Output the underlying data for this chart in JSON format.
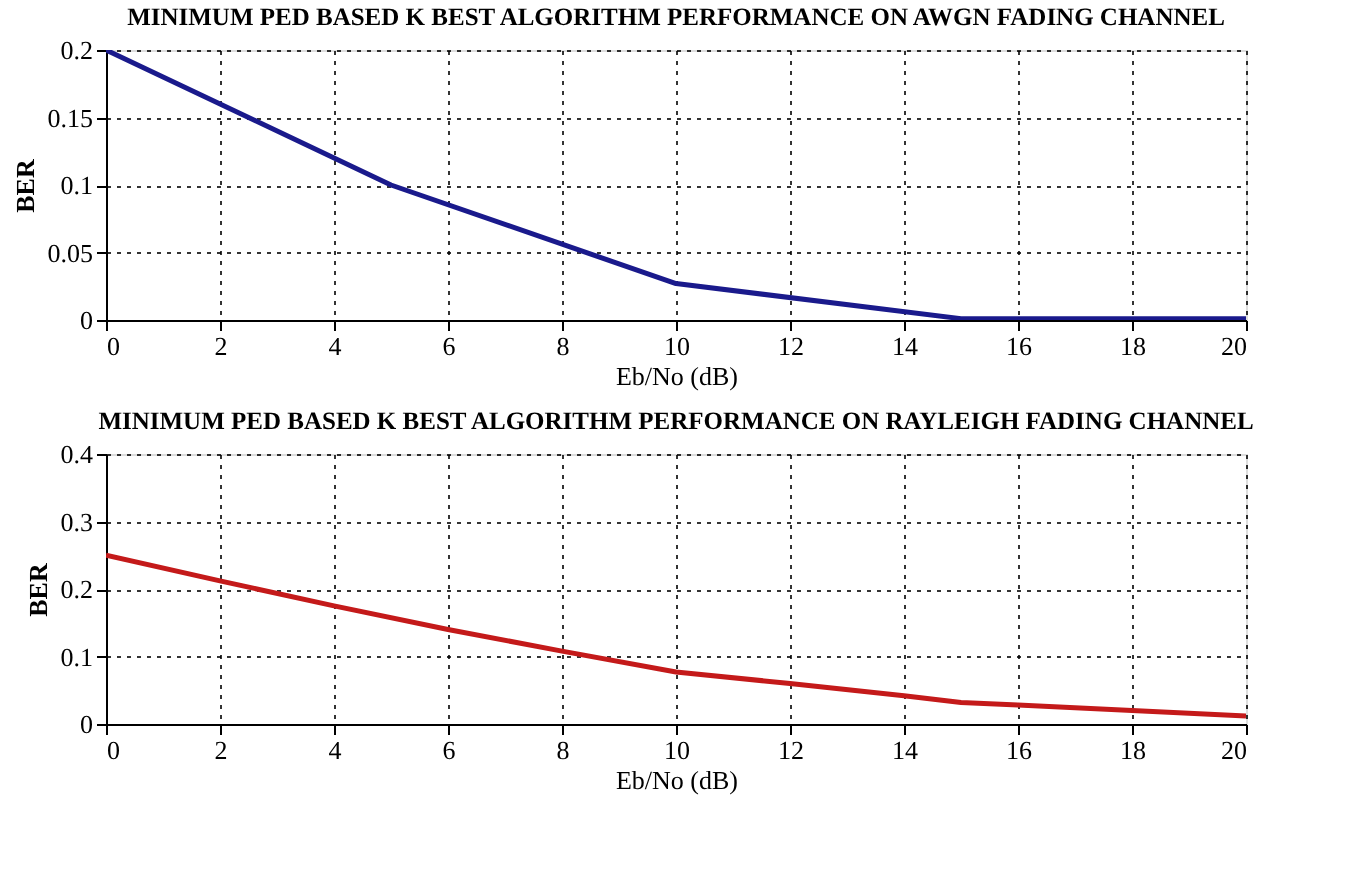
{
  "chart_data": [
    {
      "type": "line",
      "title": "MINIMUM PED BASED K BEST ALGORITHM PERFORMANCE ON AWGN FADING CHANNEL",
      "xlabel": "Eb/No (dB)",
      "ylabel": "BER",
      "x": [
        0,
        5,
        10,
        15,
        20
      ],
      "series": [
        {
          "color": "#1a1a8c",
          "values": [
            0.2,
            0.1,
            0.027,
            0.001,
            0.001
          ]
        }
      ],
      "xlim": [
        0,
        20
      ],
      "xticks": [
        0,
        2,
        4,
        6,
        8,
        10,
        12,
        14,
        16,
        18,
        20
      ],
      "ylim": [
        0,
        0.2
      ],
      "yticks": [
        0,
        0.05,
        0.1,
        0.15,
        0.2
      ],
      "grid": true,
      "line_style": "solid"
    },
    {
      "type": "line",
      "title": "MINIMUM PED BASED K BEST ALGORITHM PERFORMANCE ON RAYLEIGH FADING CHANNEL",
      "xlabel": "Eb/No (dB)",
      "ylabel": "BER",
      "x": [
        0,
        2,
        4,
        6,
        8,
        10,
        12,
        14,
        15,
        16,
        18,
        20
      ],
      "series": [
        {
          "color": "#c41a1a",
          "values": [
            0.25,
            0.212,
            0.175,
            0.14,
            0.108,
            0.077,
            0.06,
            0.042,
            0.032,
            0.028,
            0.02,
            0.012
          ]
        }
      ],
      "xlim": [
        0,
        20
      ],
      "xticks": [
        0,
        2,
        4,
        6,
        8,
        10,
        12,
        14,
        16,
        18,
        20
      ],
      "ylim": [
        0,
        0.4
      ],
      "yticks": [
        0,
        0.1,
        0.2,
        0.3,
        0.4
      ],
      "grid": true,
      "line_style": "solid"
    }
  ]
}
